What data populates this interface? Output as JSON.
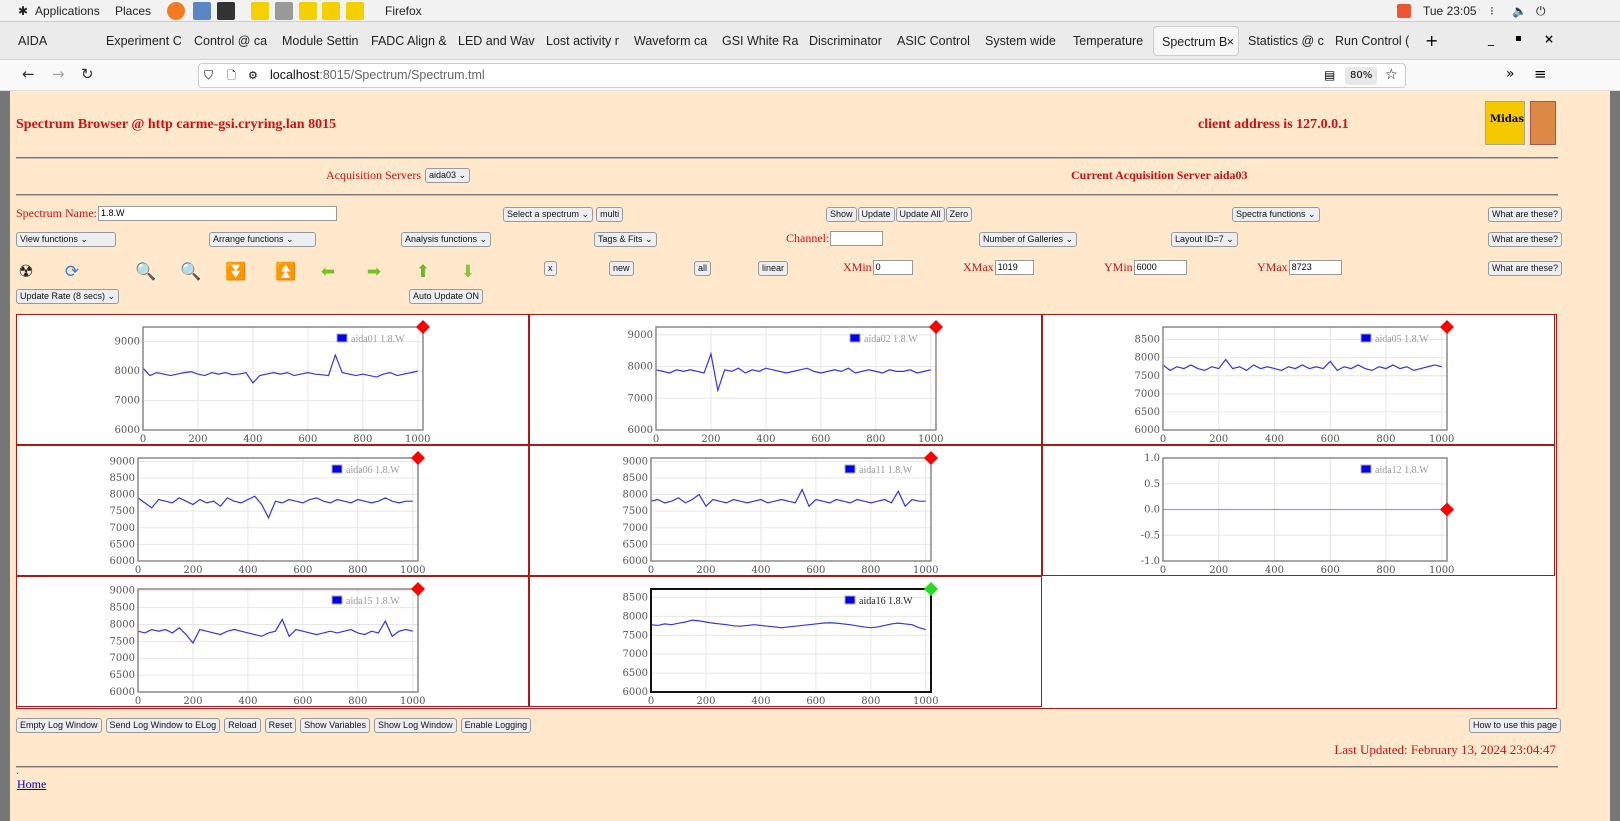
{
  "system_bar": {
    "applications": "Applications",
    "places": "Places",
    "app_name": "Firefox",
    "clock": "Tue 23:05"
  },
  "tabs": [
    {
      "label": "AIDA"
    },
    {
      "label": "Experiment C"
    },
    {
      "label": "Control @ ca"
    },
    {
      "label": "Module Settin"
    },
    {
      "label": "FADC Align &"
    },
    {
      "label": "LED and Wav"
    },
    {
      "label": "Lost activity r"
    },
    {
      "label": "Waveform ca"
    },
    {
      "label": "GSI White Ra"
    },
    {
      "label": "Discriminator"
    },
    {
      "label": "ASIC Control"
    },
    {
      "label": "System wide"
    },
    {
      "label": "Temperature"
    },
    {
      "label": "Spectrum B",
      "active": true
    },
    {
      "label": "Statistics @ c"
    },
    {
      "label": "Run Control ("
    }
  ],
  "nav": {
    "url_host": "localhost",
    "url_path": ":8015/Spectrum/Spectrum.tml",
    "zoom": "80%"
  },
  "header": {
    "title": "Spectrum Browser @ http carme-gsi.cryring.lan 8015",
    "client": "client address is 127.0.0.1"
  },
  "servers": {
    "label": "Acquisition Servers",
    "selected": "aida03",
    "current": "Current Acquisition Server aida03"
  },
  "controls": {
    "spectrum_name_label": "Spectrum Name:",
    "spectrum_name": "1.8.W",
    "select_spectrum": "Select a spectrum",
    "multi": "multi",
    "show": "Show",
    "update": "Update",
    "update_all": "Update All",
    "zero": "Zero",
    "spectra_functions": "Spectra functions",
    "what": "What are these?",
    "view_functions": "View functions",
    "arrange_functions": "Arrange functions",
    "analysis_functions": "Analysis functions",
    "tags_fits": "Tags & Fits",
    "channel_label": "Channel:",
    "channel": "",
    "galleries": "Number of Galleries",
    "layout": "Layout ID=7",
    "x": "x",
    "new": "new",
    "all": "all",
    "linear": "linear",
    "xmin_label": "XMin",
    "xmin": "0",
    "xmax_label": "XMax",
    "xmax": "1019",
    "ymin_label": "YMin",
    "ymin": "6000",
    "ymax_label": "YMax",
    "ymax": "8723",
    "update_rate": "Update Rate (8 secs)",
    "auto_update": "Auto Update ON"
  },
  "footer": {
    "buttons": [
      "Empty Log Window",
      "Send Log Window to ELog",
      "Reload",
      "Reset",
      "Show Variables",
      "Show Log Window",
      "Enable Logging"
    ],
    "help": "How to use this page",
    "last_updated": "Last Updated: February 13, 2024 23:04:47",
    "dot": ".",
    "home": "Home"
  },
  "colors": {
    "series": "#3333ee",
    "panel_border": "#b01818",
    "marker_stale": "#ff0000",
    "marker_current": "#22dd22",
    "page_bg": "#ffe8cc"
  },
  "chart_data": [
    {
      "type": "line",
      "legend": "aida01 1.8.W",
      "marker": "red",
      "xlim": [
        0,
        1019
      ],
      "ylim": [
        6000,
        9500
      ],
      "xticks": [
        0,
        200,
        400,
        600,
        800,
        1000
      ],
      "yticks": [
        6000,
        7000,
        8000,
        9000
      ],
      "x_step": 25,
      "values": [
        8100,
        7850,
        7950,
        7900,
        7850,
        7900,
        7950,
        7980,
        7900,
        7850,
        7950,
        7900,
        7950,
        7880,
        7900,
        7950,
        7600,
        7850,
        7900,
        7950,
        7900,
        7950,
        7850,
        7900,
        7950,
        7900,
        7880,
        7850,
        8550,
        7950,
        7900,
        7850,
        7900,
        7850,
        7800,
        7900,
        7950,
        7850,
        7900,
        7950,
        8000
      ]
    },
    {
      "type": "line",
      "legend": "aida02 1.8.W",
      "marker": "red",
      "xlim": [
        0,
        1019
      ],
      "ylim": [
        6000,
        9250
      ],
      "xticks": [
        0,
        200,
        400,
        600,
        800,
        1000
      ],
      "yticks": [
        6000,
        7000,
        8000,
        9000
      ],
      "x_step": 25,
      "values": [
        7900,
        7850,
        7800,
        7900,
        7850,
        7900,
        7850,
        7800,
        8400,
        7250,
        7900,
        7850,
        7950,
        7800,
        7900,
        7850,
        7950,
        7900,
        7850,
        7800,
        7850,
        7900,
        7950,
        7850,
        7800,
        7850,
        7900,
        7850,
        7950,
        7800,
        7850,
        7900,
        7850,
        7800,
        7900,
        7850,
        7850,
        7900,
        7800,
        7850,
        7900
      ]
    },
    {
      "type": "line",
      "legend": "aida05 1.8.W",
      "marker": "red",
      "xlim": [
        0,
        1019
      ],
      "ylim": [
        6000,
        8850
      ],
      "xticks": [
        0,
        200,
        400,
        600,
        800,
        1000
      ],
      "yticks": [
        6000,
        6500,
        7000,
        7500,
        8000,
        8500
      ],
      "x_step": 25,
      "values": [
        7800,
        7650,
        7750,
        7700,
        7800,
        7700,
        7650,
        7750,
        7700,
        7950,
        7700,
        7750,
        7650,
        7800,
        7700,
        7750,
        7700,
        7650,
        7750,
        7700,
        7800,
        7700,
        7750,
        7700,
        7900,
        7650,
        7750,
        7700,
        7800,
        7700,
        7650,
        7750,
        7700,
        7800,
        7700,
        7750,
        7650,
        7700,
        7750,
        7800,
        7750
      ]
    },
    {
      "type": "line",
      "legend": "aida06 1.8.W",
      "marker": "red",
      "xlim": [
        0,
        1019
      ],
      "ylim": [
        6000,
        9100
      ],
      "xticks": [
        0,
        200,
        400,
        600,
        800,
        1000
      ],
      "yticks": [
        6000,
        6500,
        7000,
        7500,
        8000,
        8500,
        9000
      ],
      "x_step": 25,
      "values": [
        7900,
        7750,
        7600,
        7850,
        7800,
        7750,
        7900,
        7800,
        7700,
        7850,
        7750,
        7800,
        7650,
        7900,
        7800,
        7750,
        7850,
        7950,
        7700,
        7300,
        7800,
        7750,
        7850,
        7800,
        7750,
        7850,
        7900,
        7800,
        7750,
        7850,
        7800,
        7750,
        7850,
        7800,
        7750,
        7800,
        7900,
        7800,
        7750,
        7800,
        7800
      ]
    },
    {
      "type": "line",
      "legend": "aida11 1.8.W",
      "marker": "red",
      "xlim": [
        0,
        1019
      ],
      "ylim": [
        6000,
        9100
      ],
      "xticks": [
        0,
        200,
        400,
        600,
        800,
        1000
      ],
      "yticks": [
        6000,
        6500,
        7000,
        7500,
        8000,
        8500,
        9000
      ],
      "x_step": 25,
      "values": [
        7800,
        7850,
        7750,
        7800,
        7900,
        7750,
        7850,
        8000,
        7650,
        7850,
        7800,
        7750,
        7850,
        7800,
        7750,
        7800,
        7850,
        7750,
        7800,
        7850,
        7800,
        7750,
        8150,
        7650,
        7850,
        7800,
        7750,
        7850,
        7800,
        7750,
        7850,
        7800,
        7750,
        7800,
        7850,
        7750,
        8100,
        7650,
        7850,
        7800,
        7800
      ]
    },
    {
      "type": "line",
      "legend": "aida12 1.8.W",
      "marker": "red",
      "xlim": [
        0,
        1019
      ],
      "ylim": [
        -1.0,
        1.0
      ],
      "xticks": [
        0,
        200,
        400,
        600,
        800,
        1000
      ],
      "yticks": [
        -1.0,
        -0.5,
        0.0,
        0.5,
        1.0
      ],
      "x_step": 25,
      "values": [
        0,
        0,
        0,
        0,
        0,
        0,
        0,
        0,
        0,
        0,
        0,
        0,
        0,
        0,
        0,
        0,
        0,
        0,
        0,
        0,
        0,
        0,
        0,
        0,
        0,
        0,
        0,
        0,
        0,
        0,
        0,
        0,
        0,
        0,
        0,
        0,
        0,
        0,
        0,
        0,
        0
      ]
    },
    {
      "type": "line",
      "legend": "aida15 1.8.W",
      "marker": "red",
      "xlim": [
        0,
        1019
      ],
      "ylim": [
        6000,
        9050
      ],
      "xticks": [
        0,
        200,
        400,
        600,
        800,
        1000
      ],
      "yticks": [
        6000,
        6500,
        7000,
        7500,
        8000,
        8500,
        9000
      ],
      "x_step": 25,
      "values": [
        7800,
        7750,
        7850,
        7800,
        7850,
        7750,
        7900,
        7700,
        7450,
        7850,
        7800,
        7750,
        7700,
        7800,
        7850,
        7800,
        7750,
        7700,
        7650,
        7750,
        7800,
        8150,
        7650,
        7850,
        7800,
        7750,
        7700,
        7750,
        7800,
        7750,
        7800,
        7850,
        7750,
        7700,
        7800,
        7750,
        8100,
        7650,
        7800,
        7850,
        7800
      ]
    },
    {
      "type": "line",
      "legend": "aida16 1.8.W",
      "marker": "green",
      "selected": true,
      "xlim": [
        0,
        1019
      ],
      "ylim": [
        6000,
        8723
      ],
      "xticks": [
        0,
        200,
        400,
        600,
        800,
        1000
      ],
      "yticks": [
        6000,
        6500,
        7000,
        7500,
        8000,
        8500
      ],
      "x_step": 25,
      "values": [
        7780,
        7760,
        7800,
        7780,
        7820,
        7850,
        7900,
        7880,
        7850,
        7820,
        7800,
        7780,
        7750,
        7740,
        7760,
        7780,
        7760,
        7740,
        7720,
        7700,
        7720,
        7740,
        7760,
        7780,
        7800,
        7820,
        7830,
        7820,
        7800,
        7780,
        7750,
        7720,
        7700,
        7720,
        7760,
        7800,
        7820,
        7800,
        7780,
        7700,
        7650
      ]
    }
  ]
}
